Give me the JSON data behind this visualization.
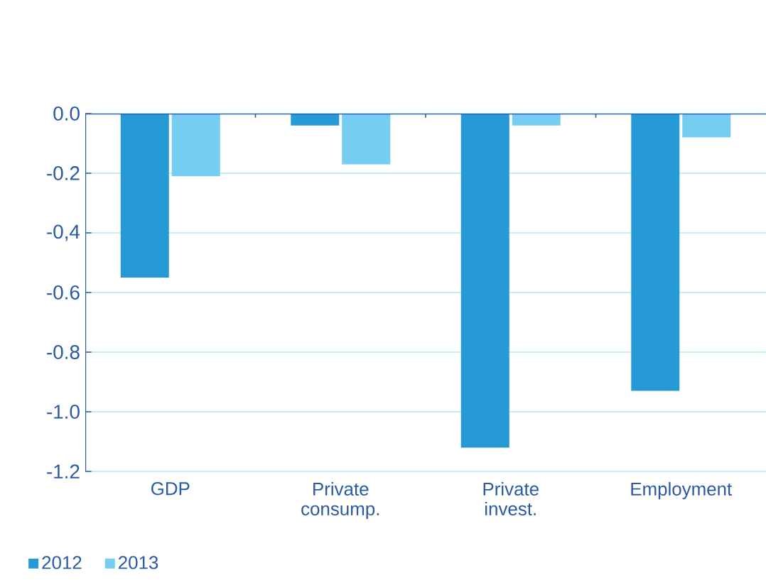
{
  "chart_data": {
    "type": "bar",
    "categories": [
      "GDP",
      "Private consump.",
      "Private invest.",
      "Employment"
    ],
    "series": [
      {
        "name": "2012",
        "color": "#259ad6",
        "values": [
          -0.55,
          -0.04,
          -1.12,
          -0.93
        ]
      },
      {
        "name": "2013",
        "color": "#76cdf2",
        "values": [
          -0.21,
          -0.17,
          -0.04,
          -0.08
        ]
      }
    ],
    "ylim": [
      -1.2,
      0.0
    ],
    "yticks": [
      {
        "value": 0.0,
        "label": "0.0"
      },
      {
        "value": -0.2,
        "label": "-0.2"
      },
      {
        "value": -0.4,
        "label": "-0,4"
      },
      {
        "value": -0.6,
        "label": "-0.6"
      },
      {
        "value": -0.8,
        "label": "-0.8"
      },
      {
        "value": -1.0,
        "label": "-1.0"
      },
      {
        "value": -1.2,
        "label": "-1.2"
      }
    ],
    "grid": "y",
    "legend": "bottom left"
  }
}
